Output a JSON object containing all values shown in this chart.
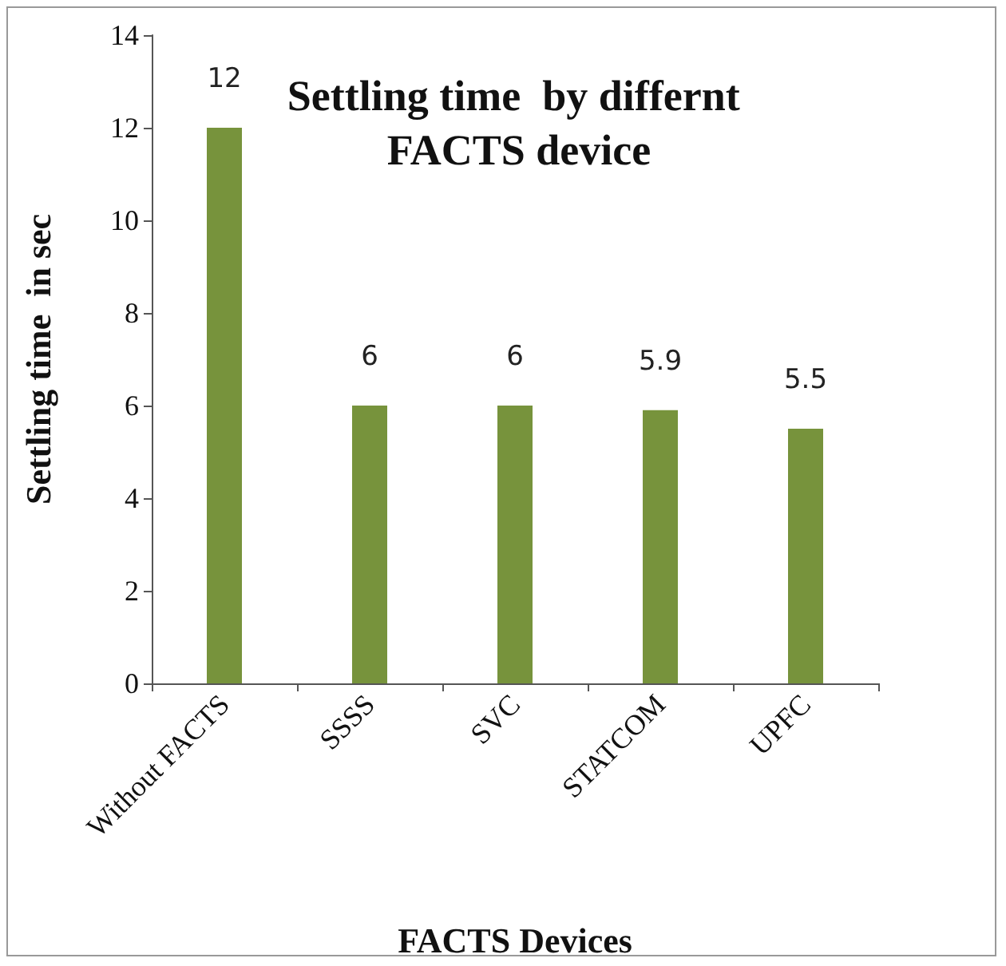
{
  "chart_data": {
    "type": "bar",
    "title": "Settling time  by differnt FACTS device",
    "xlabel": "FACTS Devices",
    "ylabel": "Settling time  in sec",
    "categories": [
      "Without FACTS",
      "SSSS",
      "SVC",
      "STATCOM",
      "UPFC"
    ],
    "values": [
      12,
      6,
      6,
      5.9,
      5.5
    ],
    "color": "#77933c",
    "ylim": [
      0,
      14
    ],
    "yticks": [
      0,
      2,
      4,
      6,
      8,
      10,
      12,
      14
    ],
    "grid": false,
    "data_labels": true
  }
}
